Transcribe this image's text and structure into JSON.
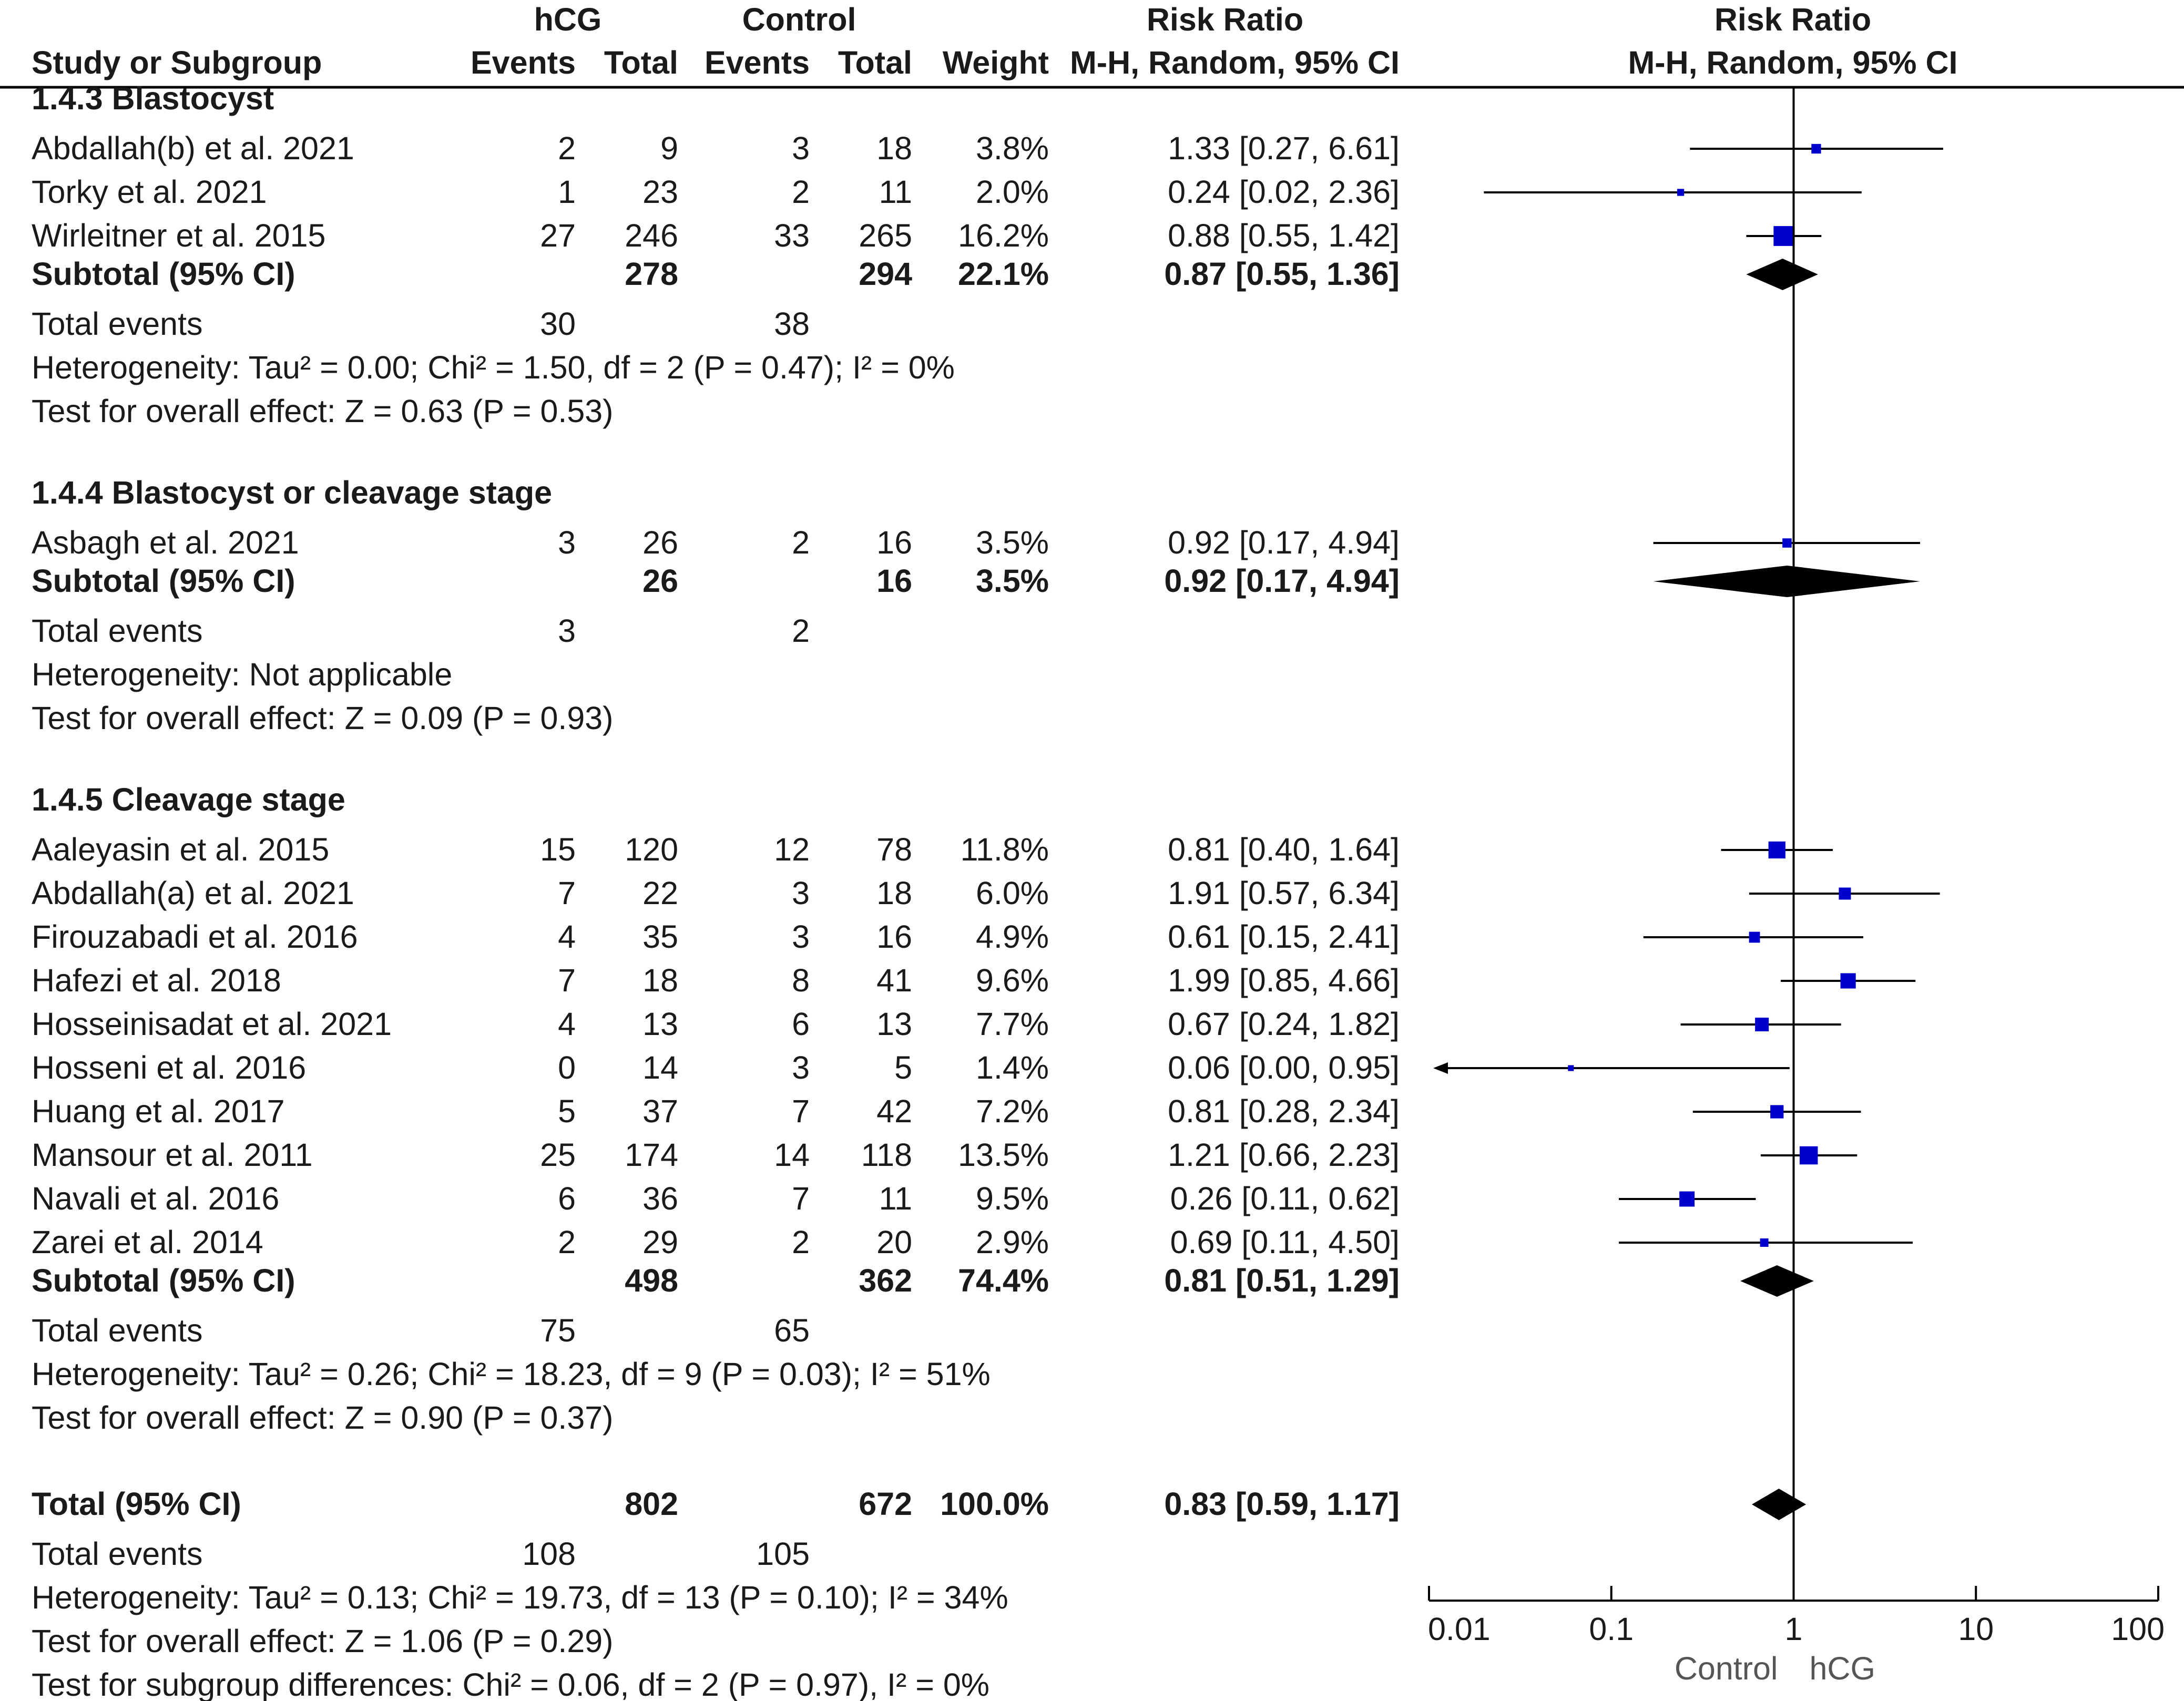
{
  "header": {
    "group1": "hCG",
    "group2": "Control",
    "study_col": "Study or Subgroup",
    "events": "Events",
    "total": "Total",
    "weight": "Weight",
    "rr_title": "Risk Ratio",
    "rr_method": "M-H, Random, 95% CI",
    "plot_title": "Risk Ratio",
    "plot_method": "M-H, Random, 95% CI"
  },
  "subgroups": [
    {
      "title": "1.4.3 Blastocyst",
      "studies": [
        {
          "name": "Abdallah(b) et al. 2021",
          "e1": "2",
          "t1": "9",
          "e2": "3",
          "t2": "18",
          "weight": "3.8%",
          "ci": "1.33 [0.27, 6.61]",
          "rr": 1.33,
          "lo": 0.27,
          "hi": 6.61,
          "w": 3.8
        },
        {
          "name": "Torky et al. 2021",
          "e1": "1",
          "t1": "23",
          "e2": "2",
          "t2": "11",
          "weight": "2.0%",
          "ci": "0.24 [0.02, 2.36]",
          "rr": 0.24,
          "lo": 0.02,
          "hi": 2.36,
          "w": 2.0
        },
        {
          "name": "Wirleitner et al. 2015",
          "e1": "27",
          "t1": "246",
          "e2": "33",
          "t2": "265",
          "weight": "16.2%",
          "ci": "0.88 [0.55, 1.42]",
          "rr": 0.88,
          "lo": 0.55,
          "hi": 1.42,
          "w": 16.2
        }
      ],
      "subtotal": {
        "label": "Subtotal (95% CI)",
        "t1": "278",
        "t2": "294",
        "weight": "22.1%",
        "ci": "0.87 [0.55, 1.36]",
        "rr": 0.87,
        "lo": 0.55,
        "hi": 1.36
      },
      "events_label": "Total events",
      "ev1": "30",
      "ev2": "38",
      "het": "Heterogeneity: Tau² = 0.00; Chi² = 1.50, df = 2 (P = 0.47); I² = 0%",
      "test": "Test for overall effect: Z = 0.63 (P = 0.53)"
    },
    {
      "title": "1.4.4 Blastocyst or cleavage stage",
      "studies": [
        {
          "name": "Asbagh et al. 2021",
          "e1": "3",
          "t1": "26",
          "e2": "2",
          "t2": "16",
          "weight": "3.5%",
          "ci": "0.92 [0.17, 4.94]",
          "rr": 0.92,
          "lo": 0.17,
          "hi": 4.94,
          "w": 3.5
        }
      ],
      "subtotal": {
        "label": "Subtotal (95% CI)",
        "t1": "26",
        "t2": "16",
        "weight": "3.5%",
        "ci": "0.92 [0.17, 4.94]",
        "rr": 0.92,
        "lo": 0.17,
        "hi": 4.94
      },
      "events_label": "Total events",
      "ev1": "3",
      "ev2": "2",
      "het": "Heterogeneity: Not applicable",
      "test": "Test for overall effect: Z = 0.09 (P = 0.93)"
    },
    {
      "title": "1.4.5 Cleavage stage",
      "studies": [
        {
          "name": "Aaleyasin et al. 2015",
          "e1": "15",
          "t1": "120",
          "e2": "12",
          "t2": "78",
          "weight": "11.8%",
          "ci": "0.81 [0.40, 1.64]",
          "rr": 0.81,
          "lo": 0.4,
          "hi": 1.64,
          "w": 11.8
        },
        {
          "name": "Abdallah(a) et al. 2021",
          "e1": "7",
          "t1": "22",
          "e2": "3",
          "t2": "18",
          "weight": "6.0%",
          "ci": "1.91 [0.57, 6.34]",
          "rr": 1.91,
          "lo": 0.57,
          "hi": 6.34,
          "w": 6.0
        },
        {
          "name": "Firouzabadi et al. 2016",
          "e1": "4",
          "t1": "35",
          "e2": "3",
          "t2": "16",
          "weight": "4.9%",
          "ci": "0.61 [0.15, 2.41]",
          "rr": 0.61,
          "lo": 0.15,
          "hi": 2.41,
          "w": 4.9
        },
        {
          "name": "Hafezi et al. 2018",
          "e1": "7",
          "t1": "18",
          "e2": "8",
          "t2": "41",
          "weight": "9.6%",
          "ci": "1.99 [0.85, 4.66]",
          "rr": 1.99,
          "lo": 0.85,
          "hi": 4.66,
          "w": 9.6
        },
        {
          "name": "Hosseinisadat et al. 2021",
          "e1": "4",
          "t1": "13",
          "e2": "6",
          "t2": "13",
          "weight": "7.7%",
          "ci": "0.67 [0.24, 1.82]",
          "rr": 0.67,
          "lo": 0.24,
          "hi": 1.82,
          "w": 7.7
        },
        {
          "name": "Hosseni et al. 2016",
          "e1": "0",
          "t1": "14",
          "e2": "3",
          "t2": "5",
          "weight": "1.4%",
          "ci": "0.06 [0.00, 0.95]",
          "rr": 0.06,
          "lo": 0.0,
          "hi": 0.95,
          "w": 1.4
        },
        {
          "name": "Huang et al. 2017",
          "e1": "5",
          "t1": "37",
          "e2": "7",
          "t2": "42",
          "weight": "7.2%",
          "ci": "0.81 [0.28, 2.34]",
          "rr": 0.81,
          "lo": 0.28,
          "hi": 2.34,
          "w": 7.2
        },
        {
          "name": "Mansour et al. 2011",
          "e1": "25",
          "t1": "174",
          "e2": "14",
          "t2": "118",
          "weight": "13.5%",
          "ci": "1.21 [0.66, 2.23]",
          "rr": 1.21,
          "lo": 0.66,
          "hi": 2.23,
          "w": 13.5
        },
        {
          "name": "Navali et al. 2016",
          "e1": "6",
          "t1": "36",
          "e2": "7",
          "t2": "11",
          "weight": "9.5%",
          "ci": "0.26 [0.11, 0.62]",
          "rr": 0.26,
          "lo": 0.11,
          "hi": 0.62,
          "w": 9.5
        },
        {
          "name": "Zarei et al. 2014",
          "e1": "2",
          "t1": "29",
          "e2": "2",
          "t2": "20",
          "weight": "2.9%",
          "ci": "0.69 [0.11, 4.50]",
          "rr": 0.69,
          "lo": 0.11,
          "hi": 4.5,
          "w": 2.9
        }
      ],
      "subtotal": {
        "label": "Subtotal (95% CI)",
        "t1": "498",
        "t2": "362",
        "weight": "74.4%",
        "ci": "0.81 [0.51, 1.29]",
        "rr": 0.81,
        "lo": 0.51,
        "hi": 1.29
      },
      "events_label": "Total events",
      "ev1": "75",
      "ev2": "65",
      "het": "Heterogeneity: Tau² = 0.26; Chi² = 18.23, df = 9 (P = 0.03); I² = 51%",
      "test": "Test for overall effect: Z = 0.90 (P = 0.37)"
    }
  ],
  "overall": {
    "label": "Total (95% CI)",
    "t1": "802",
    "t2": "672",
    "weight": "100.0%",
    "ci": "0.83 [0.59, 1.17]",
    "rr": 0.83,
    "lo": 0.59,
    "hi": 1.17,
    "events_label": "Total events",
    "ev1": "108",
    "ev2": "105",
    "het": "Heterogeneity: Tau² = 0.13; Chi² = 19.73, df = 13 (P = 0.10); I² = 34%",
    "test": "Test for overall effect: Z = 1.06 (P = 0.29)",
    "subgroup_diff": "Test for subgroup differences: Chi² = 0.06, df = 2 (P = 0.97), I² = 0%"
  },
  "chart_data": {
    "type": "forest",
    "scale": "log",
    "xlim": [
      0.01,
      100
    ],
    "ticks": [
      0.01,
      0.1,
      1,
      10,
      100
    ],
    "tick_labels": [
      "0.01",
      "0.1",
      "1",
      "10",
      "100"
    ],
    "reference_line": 1,
    "favours_left": "Control",
    "favours_right": "hCG",
    "colors": {
      "study_square": "#0000cc",
      "ci_line": "#000000",
      "diamond": "#000000"
    }
  }
}
